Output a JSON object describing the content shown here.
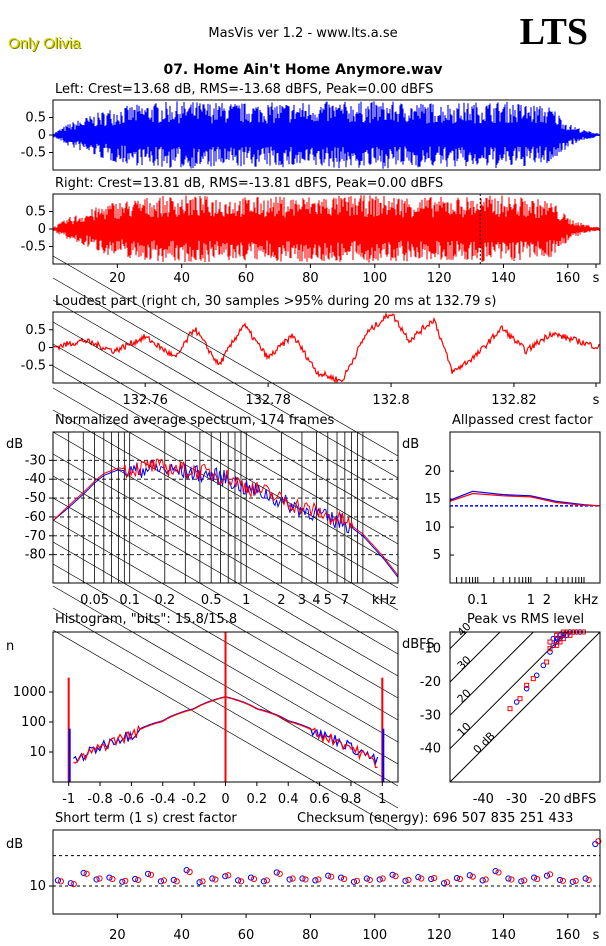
{
  "header": {
    "user": "Only Olivia",
    "app": "MasVis ver 1.2 - www.lts.a.se",
    "logo": "LTS",
    "file": "07. Home Ain't Home Anymore.wav"
  },
  "panels": {
    "left_title": "Left: Crest=13.68 dB, RMS=-13.68 dBFS, Peak=0.00 dBFS",
    "right_title": "Right: Crest=13.81 dB, RMS=-13.81 dBFS, Peak=0.00 dBFS",
    "loudest_title": "Loudest part (right ch, 30 samples >95% during 20 ms at 132.79 s)",
    "spectrum_title": "Normalized average spectrum, 174 frames",
    "allpass_title": "Allpassed crest factor",
    "histogram_title": "Histogram, \"bits\": 15.8/15.8",
    "peakrms_title": "Peak vs RMS level",
    "shortterm_title": "Short term (1 s) crest factor",
    "checksum": "Checksum (energy):   696 507 835 251 433"
  },
  "colors": {
    "left": "#0000ff",
    "right": "#ff0000",
    "axis": "#000000"
  },
  "chart_data": [
    {
      "type": "area",
      "title": "Left: Crest=13.68 dB, RMS=-13.68 dBFS, Peak=0.00 dBFS",
      "series": [
        {
          "name": "Left",
          "color": "#0000ff"
        }
      ],
      "ylim": [
        -1,
        1
      ],
      "yticks": [
        "0.5",
        "0",
        "-0.5"
      ],
      "xlim": [
        0,
        170
      ],
      "envelope_x_s": [
        0,
        5,
        18,
        30,
        40,
        60,
        80,
        100,
        120,
        140,
        150,
        155,
        160,
        165,
        170
      ],
      "envelope_peak": [
        0.05,
        0.35,
        0.8,
        0.95,
        1.0,
        0.95,
        0.98,
        1.0,
        0.95,
        1.0,
        0.9,
        0.85,
        0.35,
        0.15,
        0.05
      ]
    },
    {
      "type": "area",
      "title": "Right: Crest=13.81 dB, RMS=-13.81 dBFS, Peak=0.00 dBFS",
      "series": [
        {
          "name": "Right",
          "color": "#ff0000"
        }
      ],
      "ylim": [
        -1,
        1
      ],
      "yticks": [
        "0.5",
        "0",
        "-0.5"
      ],
      "xticks": [
        "20",
        "40",
        "60",
        "80",
        "100",
        "120",
        "140",
        "160",
        "s"
      ],
      "xlim": [
        0,
        170
      ],
      "marker_s": 132.79,
      "envelope_x_s": [
        0,
        5,
        18,
        30,
        40,
        60,
        80,
        100,
        120,
        140,
        150,
        155,
        160,
        165,
        170
      ],
      "envelope_peak": [
        0.05,
        0.35,
        0.8,
        0.95,
        1.0,
        0.95,
        0.98,
        1.0,
        0.95,
        1.0,
        0.9,
        0.85,
        0.35,
        0.15,
        0.05
      ]
    },
    {
      "type": "line",
      "title": "Loudest part (right ch, 30 samples >95% during 20 ms at 132.79 s)",
      "xlim": [
        132.745,
        132.834
      ],
      "ylim": [
        -1,
        1
      ],
      "yticks": [
        "0.5",
        "0",
        "-0.5"
      ],
      "xticks": [
        "132.76",
        "132.78",
        "132.8",
        "132.82",
        "s"
      ],
      "x": [
        132.745,
        132.75,
        132.755,
        132.76,
        132.765,
        132.768,
        132.772,
        132.776,
        132.78,
        132.784,
        132.788,
        132.792,
        132.796,
        132.8,
        132.803,
        132.807,
        132.81,
        132.814,
        132.818,
        132.822,
        132.826,
        132.83,
        132.834
      ],
      "y": [
        0.0,
        0.2,
        -0.1,
        0.3,
        -0.3,
        0.55,
        -0.5,
        0.65,
        -0.3,
        0.35,
        -0.7,
        -0.95,
        0.4,
        0.98,
        0.2,
        0.8,
        -0.7,
        -0.2,
        0.55,
        -0.1,
        0.4,
        0.2,
        0.0
      ]
    },
    {
      "type": "line",
      "title": "Normalized average spectrum, 174 frames",
      "ylabel": "dB",
      "xlabel": "kHz",
      "xscale": "log",
      "xlim": [
        0.022,
        20
      ],
      "ylim": [
        -95,
        -15
      ],
      "grid": true,
      "yticks": [
        "-30",
        "-40",
        "-50",
        "-60",
        "-70",
        "-80"
      ],
      "xticks": [
        "0.05",
        "0.1",
        "0.2",
        "0.5",
        "1",
        "2",
        "3",
        "4",
        "5",
        "7",
        "kHz"
      ],
      "x": [
        0.022,
        0.03,
        0.04,
        0.05,
        0.06,
        0.08,
        0.1,
        0.15,
        0.2,
        0.3,
        0.5,
        0.7,
        1,
        1.5,
        2,
        3,
        4,
        5,
        7,
        10,
        15,
        20
      ],
      "series": [
        {
          "name": "Left",
          "values": [
            -62,
            -55,
            -48,
            -42,
            -38,
            -35,
            -36,
            -34,
            -35,
            -36,
            -38,
            -40,
            -45,
            -48,
            -52,
            -56,
            -58,
            -61,
            -63,
            -70,
            -82,
            -92
          ]
        },
        {
          "name": "Right",
          "values": [
            -62,
            -54,
            -47,
            -41,
            -37,
            -34,
            -35,
            -33,
            -34,
            -35,
            -37,
            -39,
            -44,
            -47,
            -51,
            -55,
            -57,
            -60,
            -62,
            -69,
            -81,
            -91
          ]
        }
      ]
    },
    {
      "type": "line",
      "title": "Allpassed crest factor",
      "ylabel": "dB",
      "xlabel": "kHz",
      "xscale": "log",
      "xlim": [
        0.03,
        20
      ],
      "ylim": [
        0,
        27
      ],
      "yticks": [
        "20",
        "15",
        "10",
        "5"
      ],
      "xticks": [
        "0.1",
        "1",
        "2",
        "kHz"
      ],
      "x": [
        0.03,
        0.08,
        0.3,
        1,
        3,
        10,
        20
      ],
      "reference_db": 13.8,
      "series": [
        {
          "name": "Left",
          "values": [
            14.8,
            16.4,
            15.8,
            15.6,
            14.6,
            14.0,
            13.8
          ]
        },
        {
          "name": "Right",
          "values": [
            14.6,
            16.0,
            15.6,
            15.4,
            14.4,
            13.9,
            13.8
          ]
        }
      ]
    },
    {
      "type": "line",
      "title": "Histogram, \"bits\": 15.8/15.8",
      "ylabel": "n",
      "yscale": "log",
      "ylim": [
        1,
        100000
      ],
      "yticks": [
        "1000",
        "100",
        "10"
      ],
      "xlim": [
        -1.1,
        1.1
      ],
      "xticks": [
        "-1",
        "-0.8",
        "-0.6",
        "-0.4",
        "-0.2",
        "0",
        "0.2",
        "0.4",
        "0.6",
        "0.8",
        "1"
      ],
      "x": [
        -0.97,
        -0.9,
        -0.8,
        -0.6,
        -0.4,
        -0.2,
        0,
        0.2,
        0.4,
        0.6,
        0.8,
        0.9,
        0.97
      ],
      "series": [
        {
          "name": "Left",
          "values": [
            5,
            8,
            15,
            40,
            110,
            280,
            700,
            280,
            110,
            40,
            15,
            8,
            5
          ]
        },
        {
          "name": "Right",
          "values": [
            4,
            7,
            14,
            38,
            105,
            270,
            680,
            270,
            105,
            38,
            14,
            7,
            4
          ]
        }
      ],
      "spikes": [
        {
          "x": -1,
          "left": 60,
          "right": 3000
        },
        {
          "x": 0,
          "right": 100000
        },
        {
          "x": 1,
          "left": 60,
          "right": 3000
        }
      ]
    },
    {
      "type": "scatter",
      "title": "Peak vs RMS level",
      "ylabel": "dBFS",
      "xlabel": "dBFS",
      "xlim": [
        -50,
        -5
      ],
      "ylim": [
        -50,
        -5
      ],
      "xticks": [
        "-40",
        "-30",
        "-20",
        "dBFS"
      ],
      "yticks": [
        "-10",
        "-20",
        "-30",
        "-40"
      ],
      "crest_lines": [
        "40",
        "30",
        "20",
        "10",
        "0 dB"
      ],
      "series": [
        {
          "name": "Left",
          "points": [
            [
              -30,
              -26
            ],
            [
              -27,
              -22
            ],
            [
              -24,
              -18
            ],
            [
              -22,
              -15
            ],
            [
              -20,
              -11
            ],
            [
              -19,
              -9
            ],
            [
              -18,
              -8
            ],
            [
              -17,
              -7
            ],
            [
              -16,
              -6
            ],
            [
              -15,
              -6
            ],
            [
              -14,
              -5
            ],
            [
              -13,
              -5
            ],
            [
              -12,
              -5
            ],
            [
              -11,
              -5
            ],
            [
              -18,
              -7
            ],
            [
              -19,
              -7
            ],
            [
              -17,
              -6
            ]
          ]
        },
        {
          "name": "Right",
          "points": [
            [
              -32,
              -28
            ],
            [
              -29,
              -25
            ],
            [
              -27,
              -21
            ],
            [
              -25,
              -19
            ],
            [
              -21,
              -14
            ],
            [
              -20,
              -10
            ],
            [
              -18,
              -9
            ],
            [
              -17,
              -8
            ],
            [
              -16,
              -7
            ],
            [
              -15,
              -5
            ],
            [
              -14,
              -6
            ],
            [
              -13,
              -5
            ],
            [
              -12,
              -5
            ],
            [
              -10,
              -5
            ],
            [
              -18,
              -6
            ],
            [
              -20,
              -8
            ],
            [
              -16,
              -5
            ]
          ]
        }
      ]
    },
    {
      "type": "scatter",
      "title": "Short term (1 s) crest factor",
      "ylabel": "dB",
      "xlim": [
        0,
        170
      ],
      "ylim": [
        4,
        22
      ],
      "yticks": [
        "10"
      ],
      "reference_lines_db": [
        10,
        16.5
      ],
      "xticks": [
        "20",
        "40",
        "60",
        "80",
        "100",
        "120",
        "140",
        "160",
        "s"
      ],
      "x": [
        2,
        6,
        10,
        14,
        18,
        22,
        26,
        30,
        34,
        38,
        42,
        46,
        50,
        54,
        58,
        62,
        66,
        70,
        74,
        78,
        82,
        86,
        90,
        94,
        98,
        102,
        106,
        110,
        114,
        118,
        122,
        126,
        130,
        134,
        138,
        142,
        146,
        150,
        154,
        158,
        162,
        166,
        169
      ],
      "series": [
        {
          "name": "Left",
          "values": [
            11.2,
            10.6,
            12.8,
            11.4,
            11.8,
            10.9,
            11.5,
            12.6,
            11.0,
            11.3,
            13.4,
            10.8,
            11.6,
            12.1,
            11.2,
            11.8,
            11.0,
            12.9,
            11.4,
            11.6,
            11.2,
            12.2,
            11.8,
            10.9,
            11.6,
            11.4,
            12.4,
            11.1,
            11.9,
            11.5,
            10.6,
            11.7,
            12.3,
            11.2,
            13.2,
            11.6,
            11.0,
            11.8,
            12.2,
            11.3,
            10.9,
            11.6,
            19.0
          ]
        },
        {
          "name": "Right",
          "values": [
            11.0,
            10.4,
            12.6,
            11.6,
            11.5,
            11.1,
            11.3,
            12.4,
            11.2,
            11.0,
            13.0,
            11.0,
            11.4,
            12.3,
            11.0,
            11.5,
            11.2,
            12.6,
            11.6,
            11.4,
            11.4,
            12.0,
            11.5,
            11.1,
            11.3,
            11.6,
            12.1,
            11.3,
            11.6,
            11.7,
            10.8,
            11.5,
            12.0,
            11.4,
            12.9,
            11.4,
            11.2,
            11.5,
            12.5,
            11.1,
            11.1,
            11.3,
            19.6
          ]
        }
      ]
    }
  ]
}
